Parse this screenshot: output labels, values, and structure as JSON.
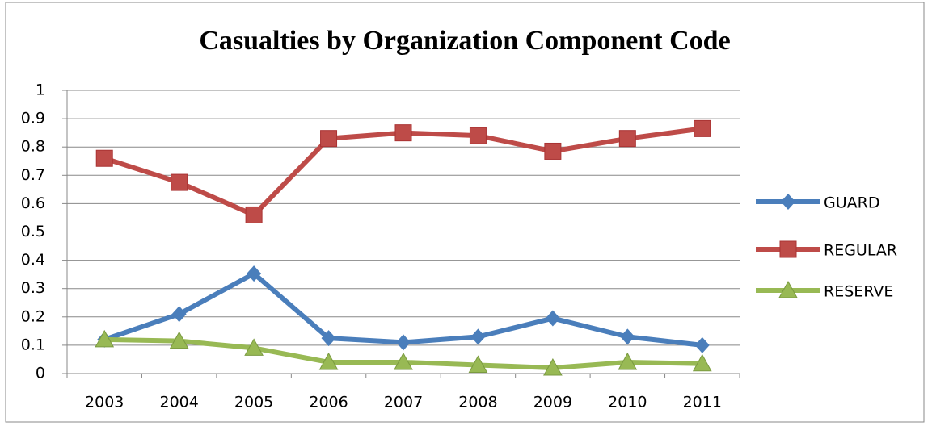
{
  "chart_data": {
    "type": "line",
    "title": "Casualties by Organization Component Code",
    "categories": [
      "2003",
      "2004",
      "2005",
      "2006",
      "2007",
      "2008",
      "2009",
      "2010",
      "2011"
    ],
    "series": [
      {
        "name": "GUARD",
        "color": "#4a7ebb",
        "marker": "diamond",
        "values": [
          0.12,
          0.21,
          0.353,
          0.125,
          0.11,
          0.13,
          0.195,
          0.13,
          0.1
        ]
      },
      {
        "name": "REGULAR",
        "color": "#be4b48",
        "marker": "square",
        "values": [
          0.76,
          0.675,
          0.56,
          0.83,
          0.85,
          0.84,
          0.785,
          0.83,
          0.865
        ]
      },
      {
        "name": "RESERVE",
        "color": "#98b954",
        "marker": "triangle",
        "values": [
          0.12,
          0.115,
          0.09,
          0.04,
          0.04,
          0.03,
          0.02,
          0.04,
          0.035
        ]
      }
    ],
    "ylim": [
      0,
      1
    ],
    "yticks": [
      0,
      0.1,
      0.2,
      0.3,
      0.4,
      0.5,
      0.6,
      0.7,
      0.8,
      0.9,
      1
    ],
    "grid": true,
    "legend": "right"
  }
}
